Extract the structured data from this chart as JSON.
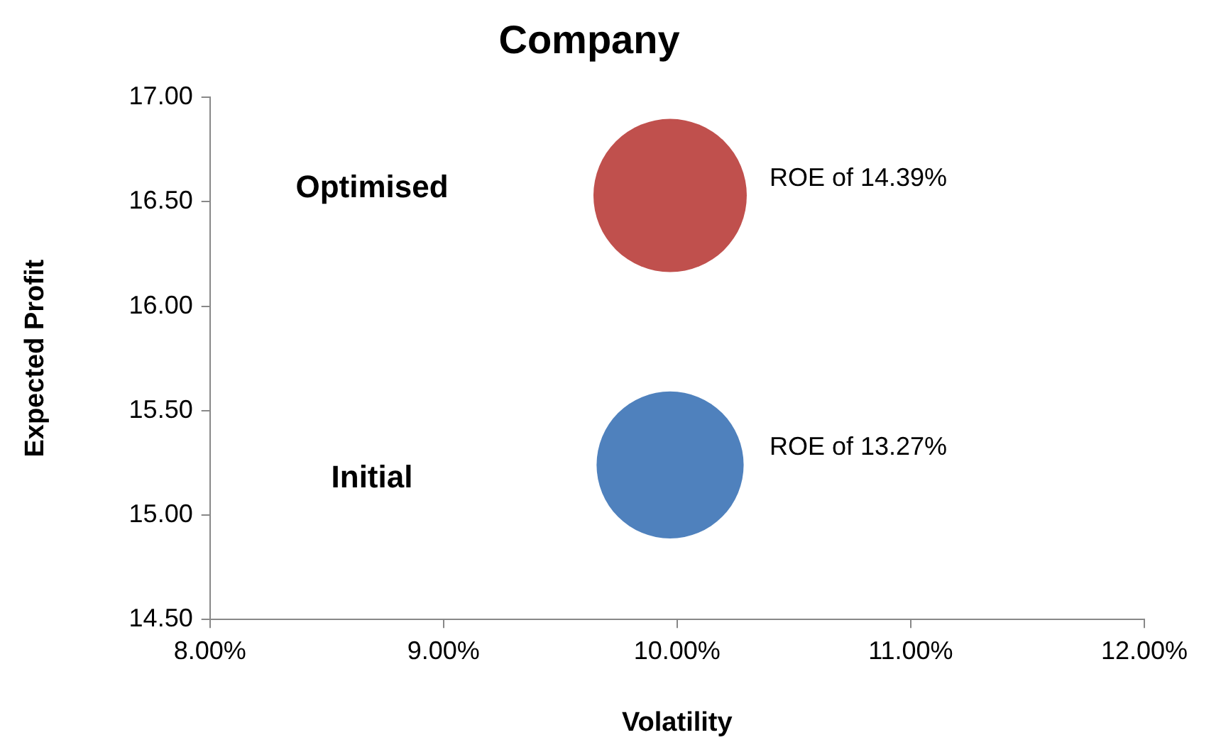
{
  "chart_data": {
    "type": "bubble",
    "title": "Company",
    "xlabel": "Volatility",
    "ylabel": "Expected Profit",
    "xlim": [
      8,
      12
    ],
    "xticks": [
      {
        "value": 8,
        "label": "8.00%"
      },
      {
        "value": 9,
        "label": "9.00%"
      },
      {
        "value": 10,
        "label": "10.00%"
      },
      {
        "value": 11,
        "label": "11.00%"
      },
      {
        "value": 12,
        "label": "12.00%"
      }
    ],
    "ylim": [
      14.5,
      17
    ],
    "yticks": [
      {
        "value": 14.5,
        "label": "14.50"
      },
      {
        "value": 15,
        "label": "15.00"
      },
      {
        "value": 15.5,
        "label": "15.50"
      },
      {
        "value": 16,
        "label": "16.00"
      },
      {
        "value": 16.5,
        "label": "16.50"
      },
      {
        "value": 17,
        "label": "17.00"
      }
    ],
    "grid": false,
    "legend": false,
    "series": [
      {
        "color": "#c0504d",
        "x": [
          9.97
        ],
        "values": [
          16.53
        ],
        "sizes": [
          1
        ]
      },
      {
        "color": "#4f81bd",
        "x": [
          9.97
        ],
        "values": [
          15.24
        ],
        "sizes": [
          0.92
        ]
      }
    ],
    "annotations": [
      "Optimised",
      "ROE of 14.39%",
      "Initial",
      "ROE of 13.27%"
    ]
  }
}
